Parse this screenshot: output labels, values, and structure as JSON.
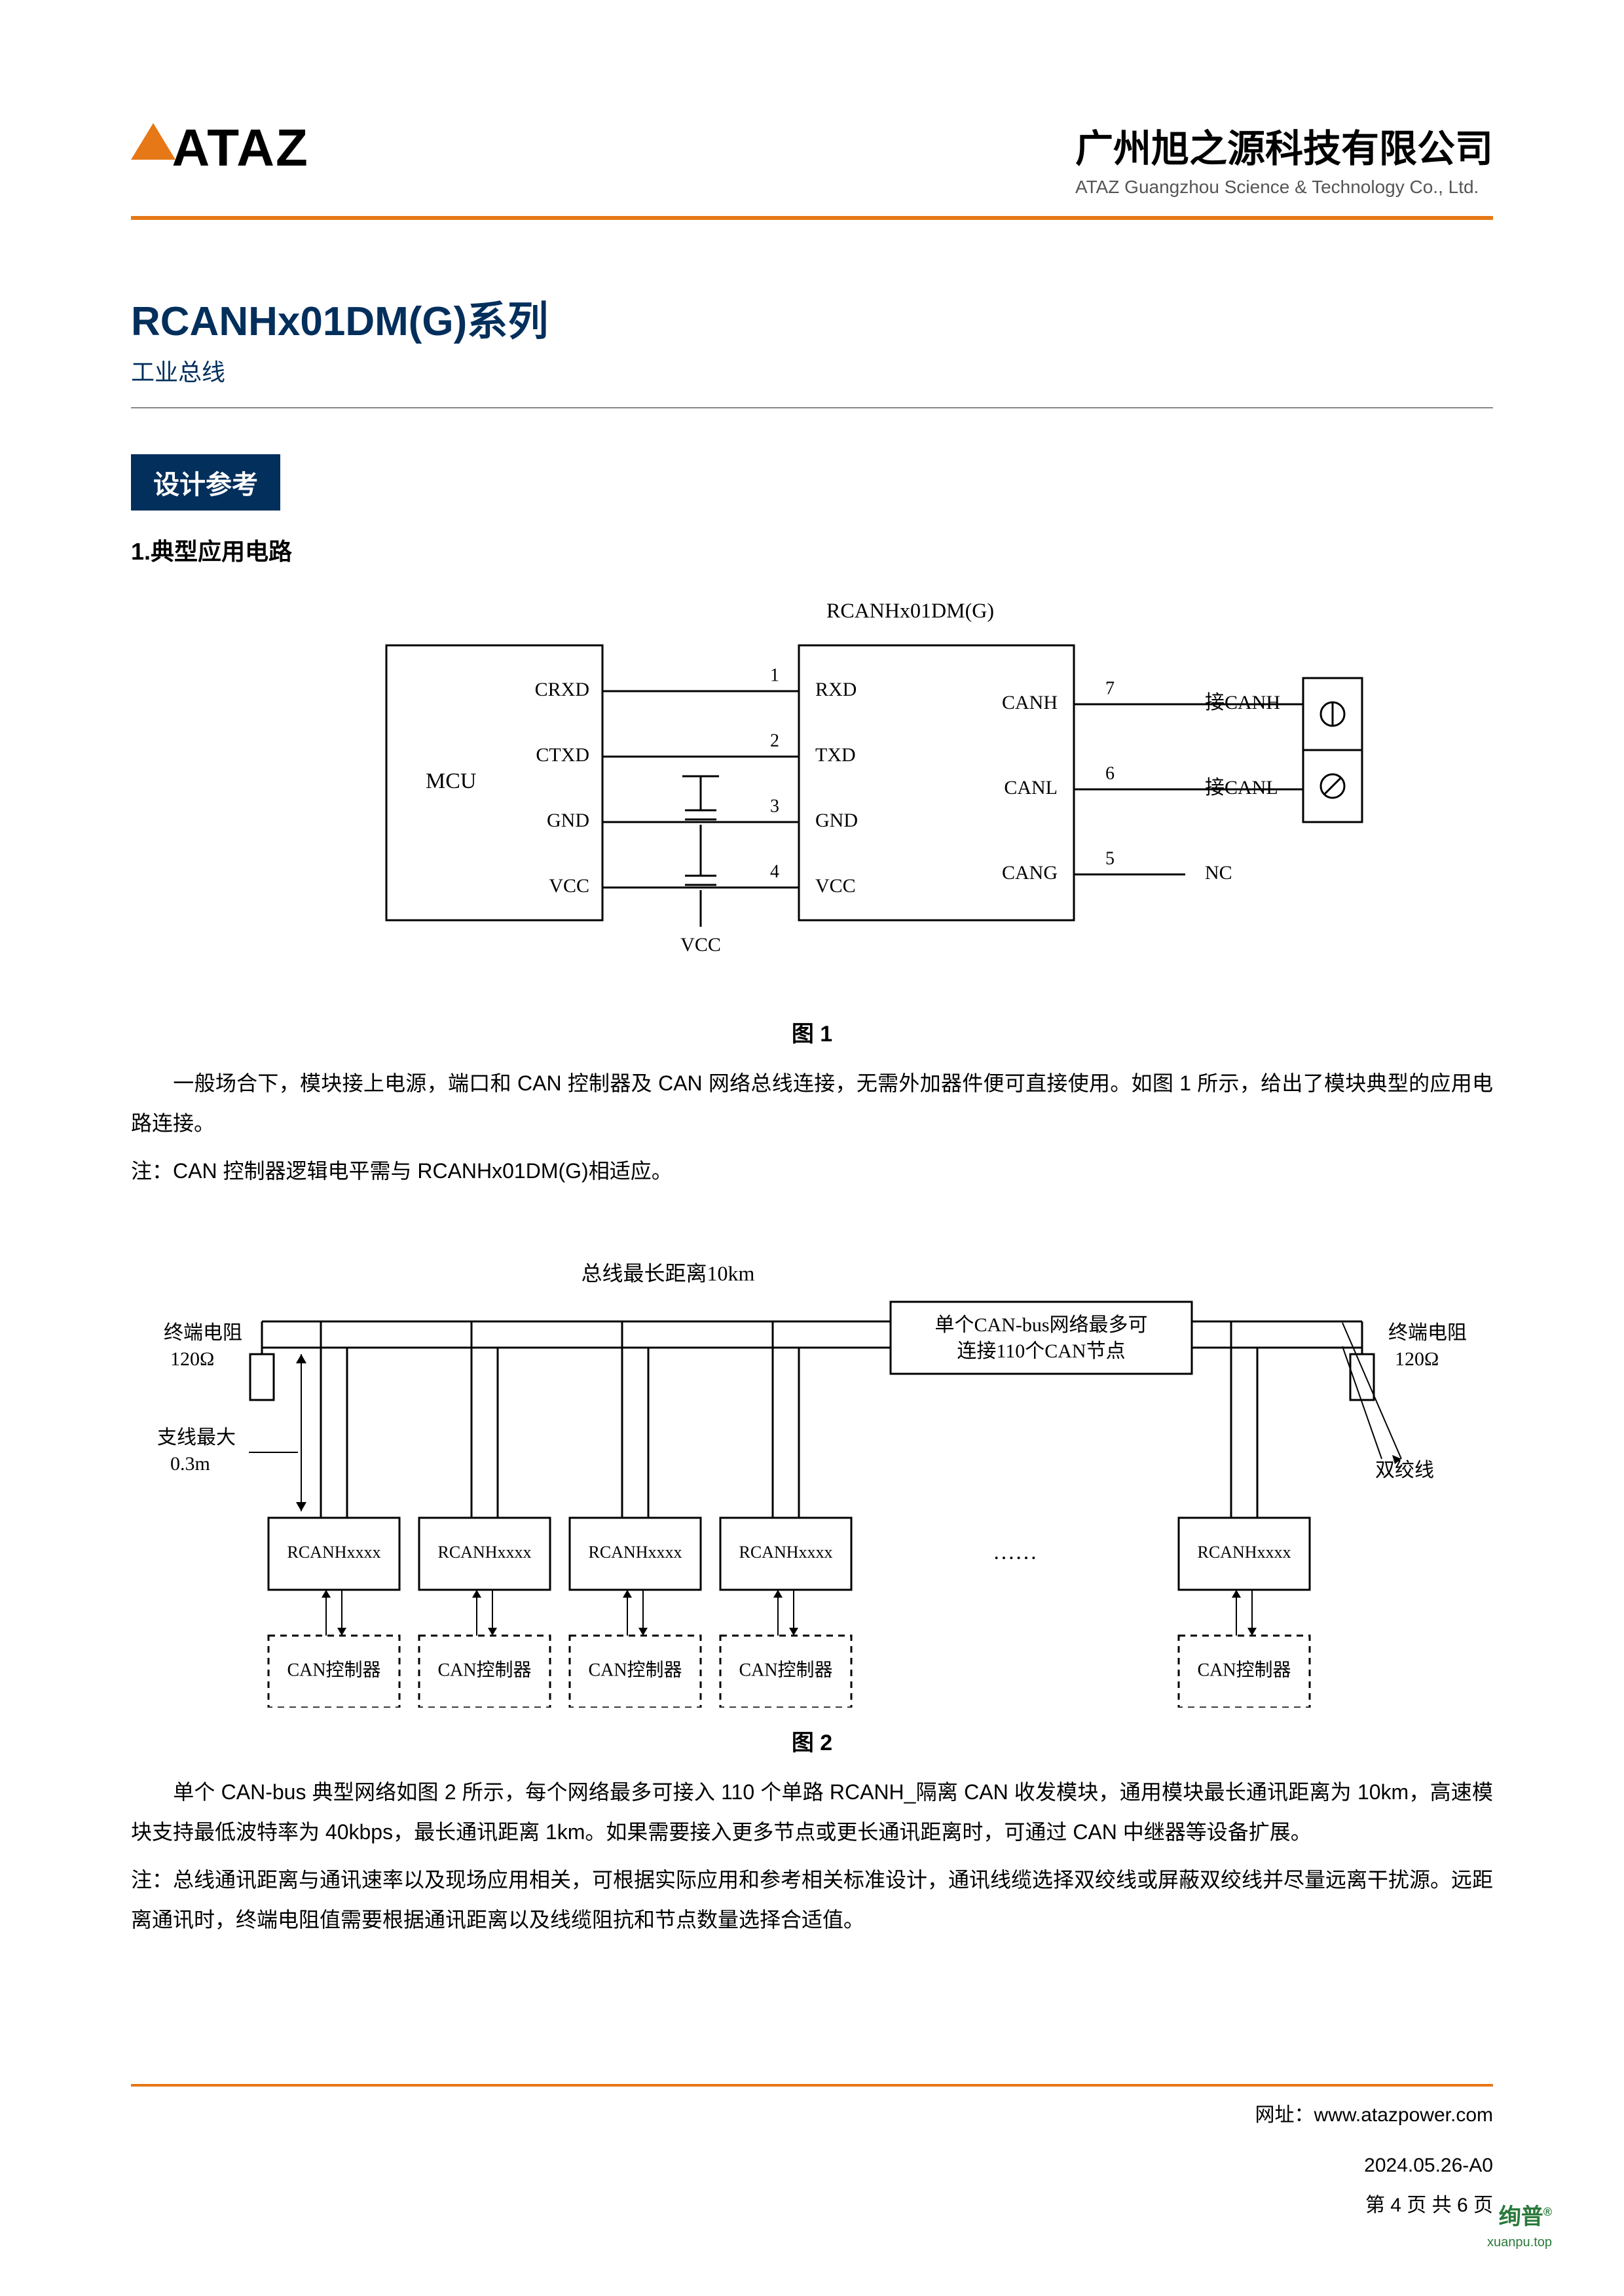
{
  "header": {
    "logo_text": "ATAZ",
    "company_cn": "广州旭之源科技有限公司",
    "company_en": "ATAZ Guangzhou Science & Technology Co., Ltd.",
    "accent_color": "#e67817",
    "title_color": "#032f5c"
  },
  "title": {
    "series": "RCANHx01DM(G)系列",
    "sub": "工业总线"
  },
  "section": {
    "badge": "设计参考",
    "h2": "1.典型应用电路"
  },
  "fig1": {
    "chip_label": "RCANHx01DM(G)",
    "mcu_label": "MCU",
    "mcu_pins": [
      "CRXD",
      "CTXD",
      "GND",
      "VCC"
    ],
    "chip_left_pins": [
      {
        "n": "1",
        "name": "RXD"
      },
      {
        "n": "2",
        "name": "TXD"
      },
      {
        "n": "3",
        "name": "GND"
      },
      {
        "n": "4",
        "name": "VCC"
      }
    ],
    "chip_right_pins": [
      {
        "n": "7",
        "name": "CANH",
        "ext": "接CANH"
      },
      {
        "n": "6",
        "name": "CANL",
        "ext": "接CANL"
      },
      {
        "n": "5",
        "name": "CANG",
        "ext": "NC"
      }
    ],
    "vcc_label": "VCC",
    "caption": "图 1"
  },
  "para1": "一般场合下，模块接上电源，端口和 CAN 控制器及 CAN 网络总线连接，无需外加器件便可直接使用。如图 1 所示，给出了模块典型的应用电路连接。",
  "note1": "注：CAN 控制器逻辑电平需与 RCANHx01DM(G)相适应。",
  "fig2": {
    "bus_label": "总线最长距离10km",
    "term_label": "终端电阻",
    "term_value": "120Ω",
    "stub_label": "支线最大",
    "stub_value": "0.3m",
    "note_box_l1": "单个CAN-bus网络最多可",
    "note_box_l2": "连接110个CAN节点",
    "twisted_label": "双绞线",
    "node_label": "RCANHxxxx",
    "ctrl_label": "CAN控制器",
    "ellipsis": "……",
    "caption": "图 2",
    "node_count": 5
  },
  "para2": "单个 CAN-bus 典型网络如图 2 所示，每个网络最多可接入 110 个单路 RCANH_隔离 CAN 收发模块，通用模块最长通讯距离为 10km，高速模块支持最低波特率为 40kbps，最长通讯距离 1km。如果需要接入更多节点或更长通讯距离时，可通过 CAN 中继器等设备扩展。",
  "note2": "注：总线通讯距离与通讯速率以及现场应用相关，可根据实际应用和参考相关标准设计，通讯线缆选择双绞线或屏蔽双绞线并尽量远离干扰源。远距离通讯时，终端电阻值需要根据通讯距离以及线缆阻抗和节点数量选择合适值。",
  "footer": {
    "site_label": "网址：",
    "site": "www.atazpower.com",
    "date": "2024.05.26-A0",
    "page": "第 4 页 共 6 页",
    "watermark": "绚普",
    "watermark_sub": "xuanpu.top",
    "reg": "®"
  }
}
